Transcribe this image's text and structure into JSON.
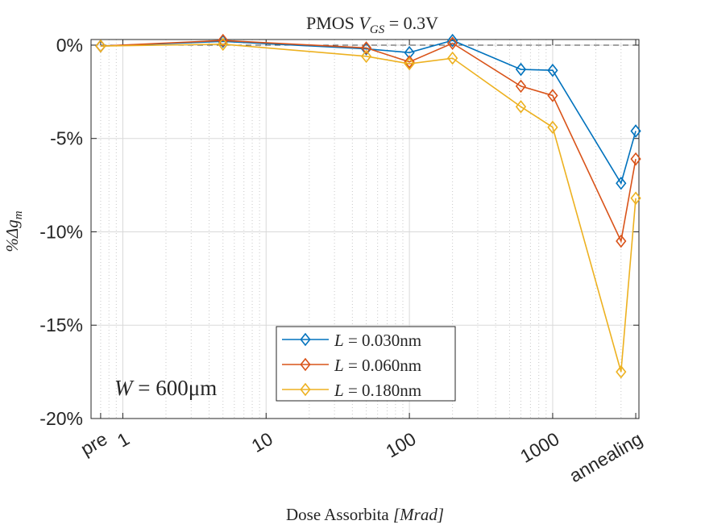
{
  "chart_data": {
    "type": "line",
    "title_prefix": "PMOS ",
    "title_math": "V",
    "title_sub": "GS",
    "title_suffix": " = 0.3V",
    "xlabel_prefix": "Dose Assorbita ",
    "xlabel_math": "[Mrad]",
    "ylabel_math": "%Δg",
    "ylabel_sub": "m",
    "annotation_prefix": "W",
    "annotation_suffix": " = 600μm",
    "x_scale": "log",
    "xlim": [
      0.6,
      4000
    ],
    "ylim": [
      -20,
      0.3
    ],
    "grid": true,
    "x_ticks": [
      {
        "x": 0.7,
        "label": "pre"
      },
      {
        "x": 1,
        "label": "1"
      },
      {
        "x": 10,
        "label": "10"
      },
      {
        "x": 100,
        "label": "100"
      },
      {
        "x": 1000,
        "label": "1000"
      },
      {
        "x": 3800,
        "label": "annealing"
      }
    ],
    "y_ticks": [
      {
        "y": 0,
        "label": "0%"
      },
      {
        "y": -5,
        "label": "-5%"
      },
      {
        "y": -10,
        "label": "-10%"
      },
      {
        "y": -15,
        "label": "-15%"
      },
      {
        "y": -20,
        "label": "-20%"
      }
    ],
    "x": [
      0.7,
      5,
      50,
      100,
      200,
      600,
      1000,
      3000,
      3800
    ],
    "series": [
      {
        "name_math": "L",
        "name_value": " = 0.030nm",
        "color": "#0072BD",
        "values": [
          -0.05,
          0.2,
          -0.2,
          -0.4,
          0.25,
          -1.3,
          -1.35,
          -7.4,
          -4.6
        ]
      },
      {
        "name_math": "L",
        "name_value": " = 0.060nm",
        "color": "#D95319",
        "values": [
          -0.05,
          0.25,
          -0.15,
          -0.9,
          0.1,
          -2.2,
          -2.7,
          -10.5,
          -6.1
        ]
      },
      {
        "name_math": "L",
        "name_value": " = 0.180nm",
        "color": "#EDB120",
        "values": [
          -0.05,
          0.05,
          -0.6,
          -1.0,
          -0.7,
          -3.3,
          -4.4,
          -17.5,
          -8.2
        ]
      }
    ],
    "legend_position": "bottom-center",
    "reference_line_y": 0
  }
}
